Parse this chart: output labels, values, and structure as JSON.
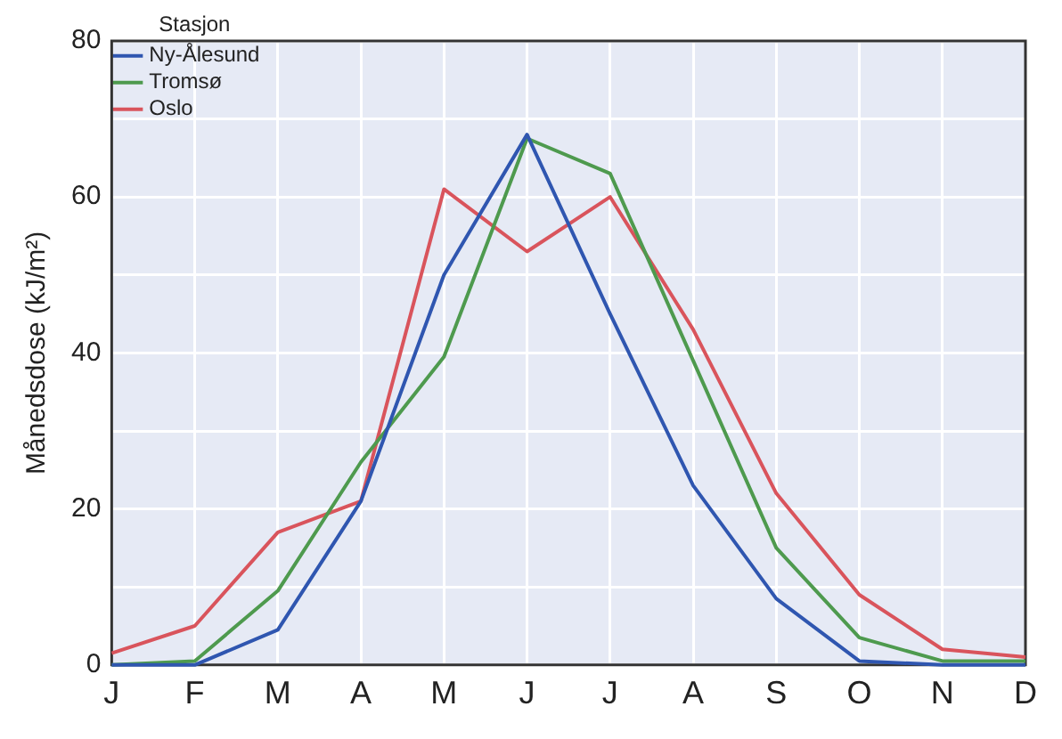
{
  "chart_data": {
    "type": "line",
    "ylabel": "Månedsdose (kJ/m²)",
    "legend_title": "Stasjon",
    "legend": "top left",
    "grid": true,
    "marker": "none",
    "line_style": "solid",
    "categories": [
      "J",
      "F",
      "M",
      "A",
      "M",
      "J",
      "J",
      "A",
      "S",
      "O",
      "N",
      "D"
    ],
    "ylim": [
      0,
      80
    ],
    "yticks": [
      0,
      {
        "value": 10,
        "label": null
      },
      20,
      {
        "value": 30,
        "label": null
      },
      40,
      {
        "value": 50,
        "label": null
      },
      60,
      {
        "value": 70,
        "label": null
      },
      80
    ],
    "series": [
      {
        "name": "Ny-Ålesund",
        "color": "#2f56b0",
        "values": [
          0,
          0,
          4.5,
          21,
          50,
          68,
          45,
          23,
          8.5,
          0.5,
          0,
          0
        ]
      },
      {
        "name": "Tromsø",
        "color": "#4e9a4e",
        "values": [
          0,
          0.5,
          9.5,
          26,
          39.5,
          67.5,
          63,
          39,
          15,
          3.5,
          0.5,
          0.5
        ]
      },
      {
        "name": "Oslo",
        "color": "#d9545c",
        "values": [
          1.5,
          5,
          17,
          21,
          61,
          53,
          60,
          43,
          22,
          9,
          2,
          1
        ]
      }
    ]
  }
}
